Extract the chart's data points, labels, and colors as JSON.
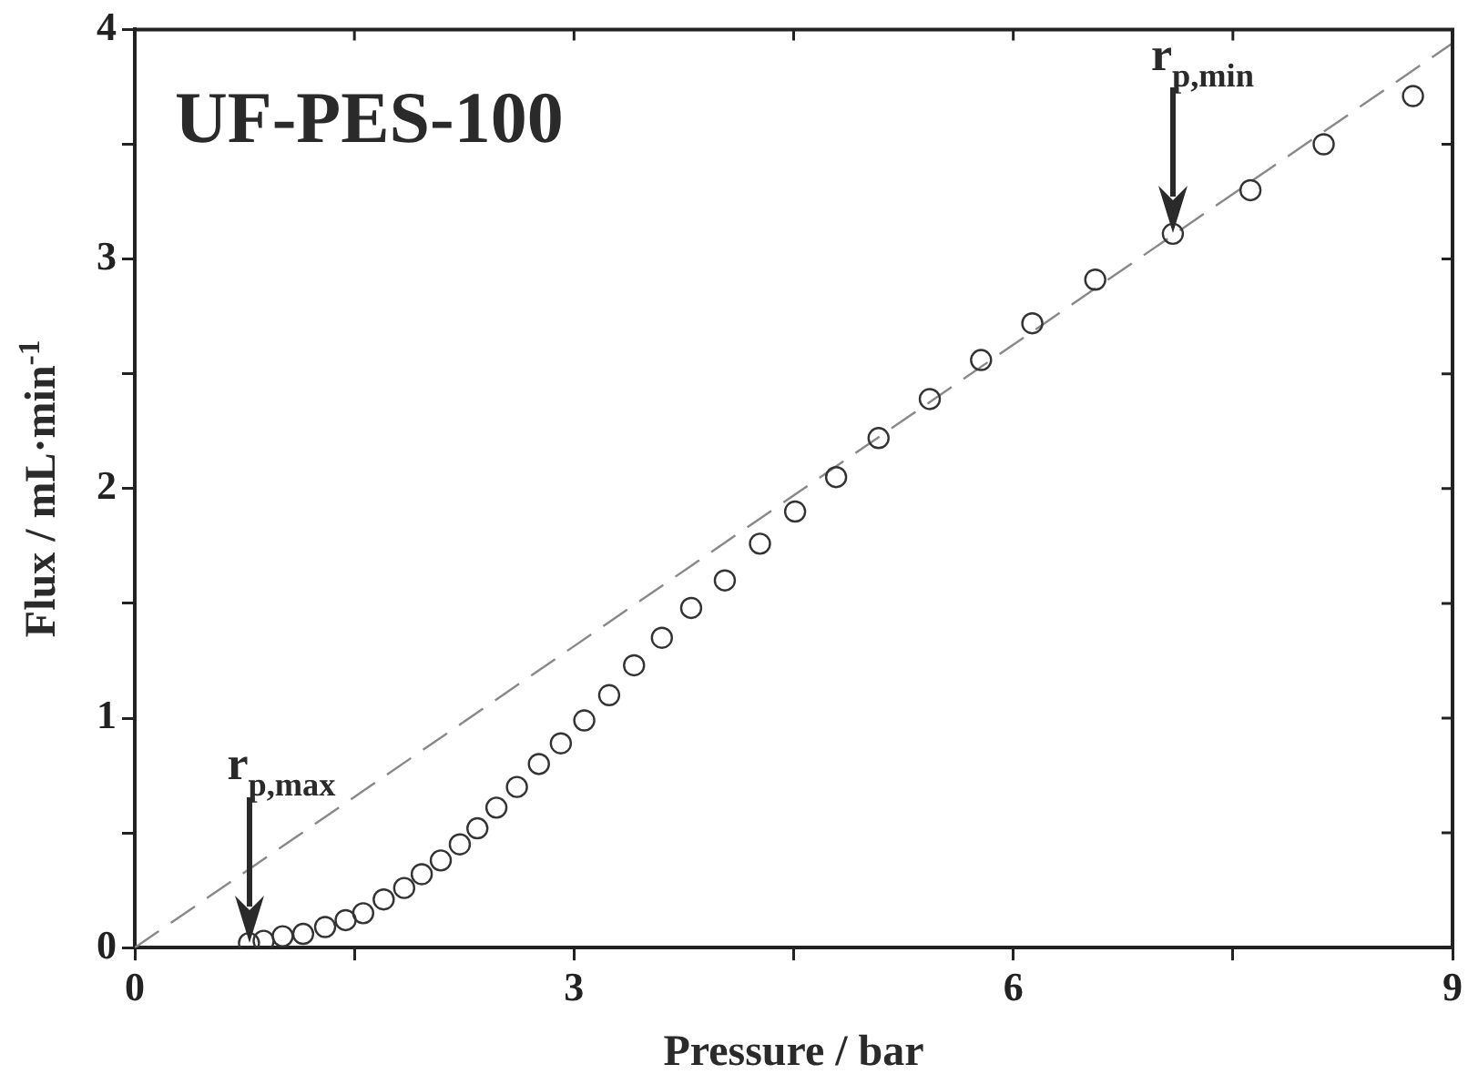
{
  "chart_data": {
    "type": "scatter",
    "title": "UF-PES-100",
    "xlabel": "Pressure / bar",
    "ylabel": "Flux / mL·min$^{-1}$",
    "xlim": [
      0,
      9
    ],
    "xticks": [
      0,
      {
        "value": 1.5,
        "label": null
      },
      3,
      {
        "value": 4.5,
        "label": null
      },
      6,
      {
        "value": 7.5,
        "label": null
      },
      9
    ],
    "ylim": [
      0,
      4
    ],
    "yticks": [
      0,
      {
        "value": 0.5,
        "label": null
      },
      1,
      {
        "value": 1.5,
        "label": null
      },
      2,
      {
        "value": 2.5,
        "label": null
      },
      3,
      {
        "value": 3.5,
        "label": null
      },
      4
    ],
    "grid": false,
    "legend": false,
    "marker": "circle",
    "series": [
      {
        "color": "#333333",
        "x": [
          0.78,
          0.88,
          1.01,
          1.15,
          1.3,
          1.44,
          1.56,
          1.7,
          1.84,
          1.96,
          2.09,
          2.22,
          2.34,
          2.47,
          2.61,
          2.76,
          2.91,
          3.07,
          3.24,
          3.41,
          3.6,
          3.8,
          4.03,
          4.27,
          4.51,
          4.79,
          5.08,
          5.43,
          5.78,
          6.13,
          6.56,
          7.09,
          7.62,
          8.12,
          8.73
        ],
        "values": [
          0.02,
          0.03,
          0.05,
          0.06,
          0.09,
          0.12,
          0.15,
          0.21,
          0.26,
          0.32,
          0.38,
          0.45,
          0.52,
          0.61,
          0.7,
          0.8,
          0.89,
          0.99,
          1.1,
          1.23,
          1.35,
          1.48,
          1.6,
          1.76,
          1.9,
          2.05,
          2.22,
          2.39,
          2.56,
          2.72,
          2.91,
          3.11,
          3.3,
          3.5,
          3.71
        ]
      },
      {
        "type": "line",
        "color": "#888888",
        "line_style": "dashed",
        "marker": "none",
        "x": [
          0,
          9
        ],
        "values": [
          0,
          3.94
        ]
      }
    ],
    "annotations": [
      {
        "text": "r$_{p,max}$",
        "x": 0.78,
        "y": 0.02
      },
      {
        "text": "r$_{p,min}$",
        "x": 7.09,
        "y": 3.11
      }
    ]
  }
}
